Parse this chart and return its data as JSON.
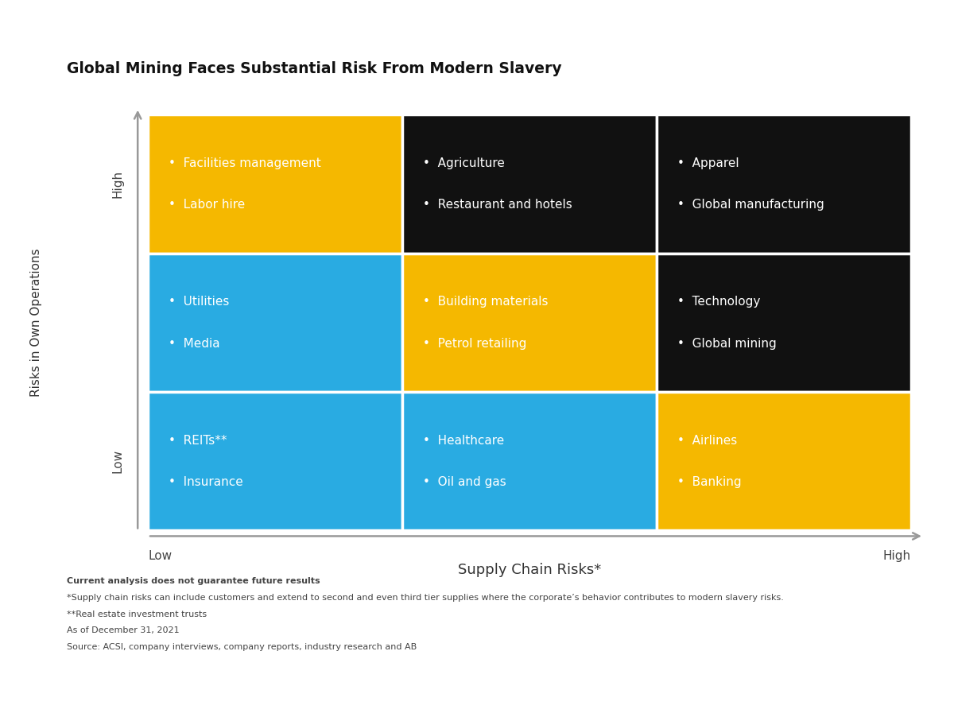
{
  "title": "Global Mining Faces Substantial Risk From Modern Slavery",
  "title_fontsize": 13.5,
  "xlabel": "Supply Chain Risks*",
  "ylabel": "Risks in Own Operations",
  "xlabel_fontsize": 13,
  "ylabel_fontsize": 11,
  "x_low_label": "Low",
  "x_high_label": "High",
  "y_low_label": "Low",
  "y_high_label": "High",
  "footnotes": [
    "Current analysis does not guarantee future results",
    "*Supply chain risks can include customers and extend to second and even third tier supplies where the corporate’s behavior contributes to modern slavery risks.",
    "**Real estate investment trusts",
    "As of December 31, 2021",
    "Source: ACSI, company interviews, company reports, industry research and AB"
  ],
  "footnote_bold": [
    true,
    false,
    false,
    false,
    false
  ],
  "cells": [
    {
      "row": 2,
      "col": 0,
      "color": "#F5B800",
      "text_color": "#FFFFFF",
      "items": [
        "Facilities management",
        "Labor hire"
      ]
    },
    {
      "row": 2,
      "col": 1,
      "color": "#111111",
      "text_color": "#FFFFFF",
      "items": [
        "Agriculture",
        "Restaurant and hotels"
      ]
    },
    {
      "row": 2,
      "col": 2,
      "color": "#111111",
      "text_color": "#FFFFFF",
      "items": [
        "Apparel",
        "Global manufacturing"
      ]
    },
    {
      "row": 1,
      "col": 0,
      "color": "#29ABE2",
      "text_color": "#FFFFFF",
      "items": [
        "Utilities",
        "Media"
      ]
    },
    {
      "row": 1,
      "col": 1,
      "color": "#F5B800",
      "text_color": "#FFFFFF",
      "items": [
        "Building materials",
        "Petrol retailing"
      ]
    },
    {
      "row": 1,
      "col": 2,
      "color": "#111111",
      "text_color": "#FFFFFF",
      "items": [
        "Technology",
        "Global mining"
      ]
    },
    {
      "row": 0,
      "col": 0,
      "color": "#29ABE2",
      "text_color": "#FFFFFF",
      "items": [
        "REITs**",
        "Insurance"
      ]
    },
    {
      "row": 0,
      "col": 1,
      "color": "#29ABE2",
      "text_color": "#FFFFFF",
      "items": [
        "Healthcare",
        "Oil and gas"
      ]
    },
    {
      "row": 0,
      "col": 2,
      "color": "#F5B800",
      "text_color": "#FFFFFF",
      "items": [
        "Airlines",
        "Banking"
      ]
    }
  ],
  "background_color": "#FFFFFF",
  "fig_width": 12.0,
  "fig_height": 9.02
}
